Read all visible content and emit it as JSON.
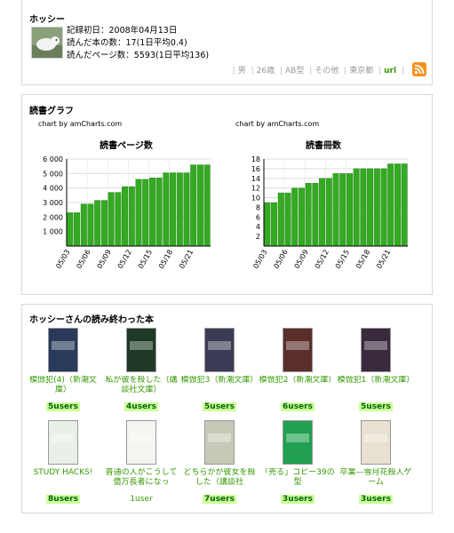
{
  "profile": {
    "title": "ホッシー",
    "stats": [
      "記録初日：2008年04月13日",
      "読んだ本の数：17(1日平均0.4)",
      "読んだページ数：5593(1日平均136)"
    ],
    "tags": [
      "男",
      "26歳",
      "AB型",
      "その他",
      "東京都"
    ],
    "url_label": "url"
  },
  "graph": {
    "title": "読書グラフ",
    "credit": "chart by amCharts.com"
  },
  "chart_data": [
    {
      "type": "bar",
      "title": "読書ページ数",
      "categories": [
        "05/03",
        "05/04",
        "05/05",
        "05/06",
        "05/07",
        "05/08",
        "05/09",
        "05/10",
        "05/11",
        "05/12",
        "05/13",
        "05/14",
        "05/15",
        "05/16",
        "05/17",
        "05/18",
        "05/19",
        "05/20",
        "05/21",
        "05/22",
        "05/23"
      ],
      "tick_labels": [
        "05/03",
        "05/06",
        "05/09",
        "05/12",
        "05/15",
        "05/18",
        "05/21"
      ],
      "values": [
        2300,
        2300,
        2900,
        2900,
        3150,
        3150,
        3700,
        3700,
        4100,
        4100,
        4600,
        4600,
        4700,
        4700,
        5050,
        5050,
        5050,
        5050,
        5600,
        5600,
        5600
      ],
      "yticks": [
        1000,
        2000,
        3000,
        4000,
        5000,
        6000
      ],
      "ytick_labels": [
        "1 000",
        "2 000",
        "3 000",
        "4 000",
        "5 000",
        "6 000"
      ],
      "ylim": [
        0,
        6000
      ],
      "grid": true,
      "color": "#33aa22"
    },
    {
      "type": "bar",
      "title": "読書冊数",
      "categories": [
        "05/03",
        "05/04",
        "05/05",
        "05/06",
        "05/07",
        "05/08",
        "05/09",
        "05/10",
        "05/11",
        "05/12",
        "05/13",
        "05/14",
        "05/15",
        "05/16",
        "05/17",
        "05/18",
        "05/19",
        "05/20",
        "05/21",
        "05/22",
        "05/23"
      ],
      "tick_labels": [
        "05/03",
        "05/06",
        "05/09",
        "05/12",
        "05/15",
        "05/18",
        "05/21"
      ],
      "values": [
        9,
        9,
        11,
        11,
        12,
        12,
        13,
        13,
        14,
        14,
        15,
        15,
        15,
        16,
        16,
        16,
        16,
        16,
        17,
        17,
        17
      ],
      "yticks": [
        2,
        4,
        6,
        8,
        10,
        12,
        14,
        16,
        18
      ],
      "ytick_labels": [
        "2",
        "4",
        "6",
        "8",
        "10",
        "12",
        "14",
        "16",
        "18"
      ],
      "ylim": [
        0,
        18
      ],
      "grid": true,
      "color": "#33aa22"
    }
  ],
  "books": {
    "title": "ホッシーさんの読み終わった本",
    "items": [
      {
        "title": "模倣犯(4)（新潮文庫）",
        "users": "5users",
        "cover": "#2a3a5a"
      },
      {
        "title": "私が彼を殺した（講談社文庫）",
        "users": "4users",
        "cover": "#1e3a26"
      },
      {
        "title": "模倣犯3（新潮文庫）",
        "users": "5users",
        "cover": "#3b3b55"
      },
      {
        "title": "模倣犯2（新潮文庫）",
        "users": "6users",
        "cover": "#5a2e2a"
      },
      {
        "title": "模倣犯1（新潮文庫）",
        "users": "5users",
        "cover": "#3a2a3e"
      },
      {
        "title": "STUDY HACKS!",
        "users": "8users",
        "cover": "#e8f0e8"
      },
      {
        "title": "普通の人がこうして億万長者になっ",
        "users": "1user",
        "cover": "#f4f4f0"
      },
      {
        "title": "どちらかが彼女を殺した（講談社",
        "users": "7users",
        "cover": "#c8c8b8"
      },
      {
        "title": "「売る」コピー39の型",
        "users": "3users",
        "cover": "#20a050"
      },
      {
        "title": "卒業―雪月花殺人ゲーム",
        "users": "3users",
        "cover": "#e8e0d0"
      }
    ]
  }
}
